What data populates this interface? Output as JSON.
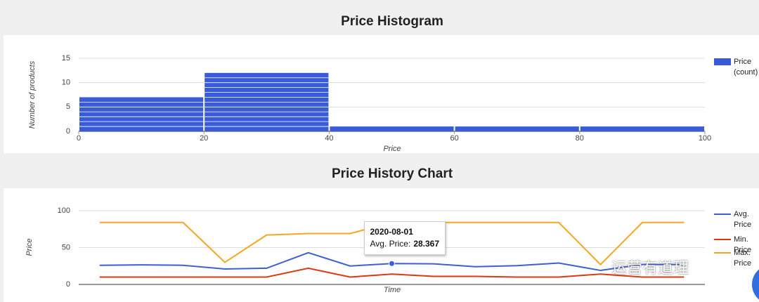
{
  "chart_data": [
    {
      "type": "histogram",
      "title": "Price Histogram",
      "bins": [
        0,
        20,
        40,
        60,
        80,
        100
      ],
      "series": [
        {
          "name": "Price (count)",
          "color": "#3a5bd9",
          "values": [
            7,
            12,
            1,
            1,
            1
          ]
        }
      ],
      "xlabel": "Price",
      "ylabel": "Number of products",
      "xlim": [
        0,
        100
      ],
      "xticks": [
        0,
        20,
        40,
        60,
        80,
        100
      ],
      "ylim": [
        0,
        15
      ],
      "yticks": [
        0,
        5,
        10,
        15
      ],
      "grid": true,
      "legend": "right"
    },
    {
      "type": "line",
      "title": "Price History Chart",
      "categories": [
        null,
        null,
        null,
        null,
        null,
        null,
        null,
        "2020-08-01",
        null,
        null,
        null,
        null,
        null,
        null,
        null
      ],
      "series": [
        {
          "name": "Avg. Price",
          "color": "#3d5fd1",
          "values": [
            26,
            26.5,
            26,
            21,
            22,
            43,
            25,
            28.367,
            28,
            24,
            25.5,
            29,
            19,
            27,
            27
          ]
        },
        {
          "name": "Min. Price",
          "color": "#dc3912",
          "values": [
            10,
            10,
            10,
            10,
            10,
            22,
            10,
            14,
            11,
            11,
            10,
            10,
            14,
            10,
            10
          ]
        },
        {
          "name": "Max. Price",
          "color": "#f5a623",
          "values": [
            84,
            84,
            84,
            30,
            67,
            69,
            69,
            84,
            84,
            84,
            84,
            84,
            27,
            84,
            84
          ]
        }
      ],
      "xlabel": "Time",
      "ylabel": "Price",
      "ylim": [
        0,
        100
      ],
      "yticks": [
        0,
        50,
        100
      ],
      "grid": true,
      "legend": "right",
      "tooltip": {
        "index": 7,
        "label": "Avg. Price:"
      }
    }
  ],
  "watermark": "运营有道理"
}
